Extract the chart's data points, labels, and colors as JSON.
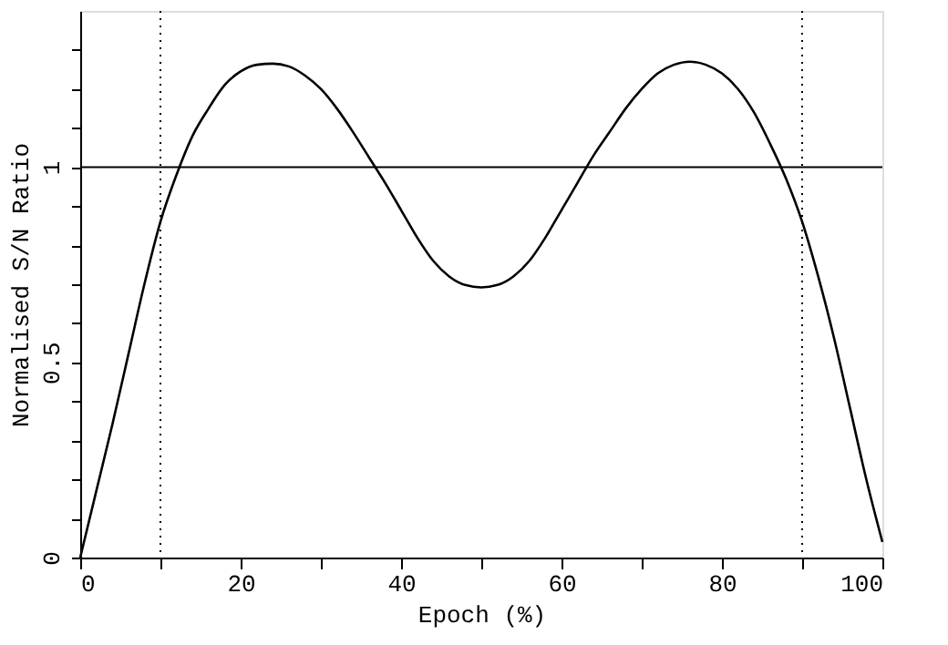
{
  "chart_data": {
    "type": "line",
    "xlabel": "Epoch (%)",
    "ylabel": "Normalised S/N Ratio",
    "x": [
      0,
      2,
      4,
      6,
      8,
      10,
      12,
      14,
      16,
      18,
      20,
      22,
      24,
      26,
      28,
      30,
      32,
      34,
      36,
      38,
      40,
      42,
      44,
      46,
      48,
      50,
      52,
      54,
      56,
      58,
      60,
      62,
      64,
      66,
      68,
      70,
      72,
      74,
      76,
      78,
      80,
      82,
      84,
      86,
      88,
      90,
      92,
      94,
      96,
      98,
      100
    ],
    "series": [
      {
        "color": "#000000",
        "values": [
          0,
          0.17,
          0.34,
          0.52,
          0.7,
          0.86,
          0.98,
          1.08,
          1.15,
          1.21,
          1.245,
          1.262,
          1.265,
          1.258,
          1.235,
          1.2,
          1.15,
          1.09,
          1.025,
          0.96,
          0.89,
          0.82,
          0.76,
          0.72,
          0.698,
          0.692,
          0.698,
          0.72,
          0.76,
          0.82,
          0.89,
          0.96,
          1.03,
          1.09,
          1.15,
          1.2,
          1.24,
          1.262,
          1.27,
          1.262,
          1.24,
          1.2,
          1.14,
          1.06,
          0.97,
          0.86,
          0.72,
          0.56,
          0.38,
          0.2,
          0.04
        ]
      }
    ],
    "xlim": [
      0,
      100
    ],
    "ylim": [
      0,
      1.4
    ],
    "xticks": [
      0,
      {
        "value": 10,
        "label": null
      },
      20,
      {
        "value": 30,
        "label": null
      },
      40,
      {
        "value": 50,
        "label": null
      },
      60,
      {
        "value": 70,
        "label": null
      },
      80,
      {
        "value": 90,
        "label": null
      },
      100
    ],
    "yticks": [
      0,
      {
        "value": 0.1,
        "label": null
      },
      {
        "value": 0.2,
        "label": null
      },
      {
        "value": 0.3,
        "label": null
      },
      {
        "value": 0.4,
        "label": null
      },
      0.5,
      {
        "value": 0.6,
        "label": null
      },
      {
        "value": 0.7,
        "label": null
      },
      {
        "value": 0.8,
        "label": null
      },
      {
        "value": 0.9,
        "label": null
      },
      1,
      {
        "value": 1.1,
        "label": null
      },
      {
        "value": 1.2,
        "label": null
      },
      {
        "value": 1.3,
        "label": null
      }
    ],
    "ref_lines": [
      {
        "axis": "y",
        "value": 1,
        "color": "#000000",
        "line_style": "solid"
      },
      {
        "axis": "x",
        "value": 10,
        "color": "#000000",
        "line_style": "dotted"
      },
      {
        "axis": "x",
        "value": 90,
        "color": "#000000",
        "line_style": "dotted"
      }
    ],
    "grid": false,
    "marker": "none",
    "line_style": "solid"
  }
}
